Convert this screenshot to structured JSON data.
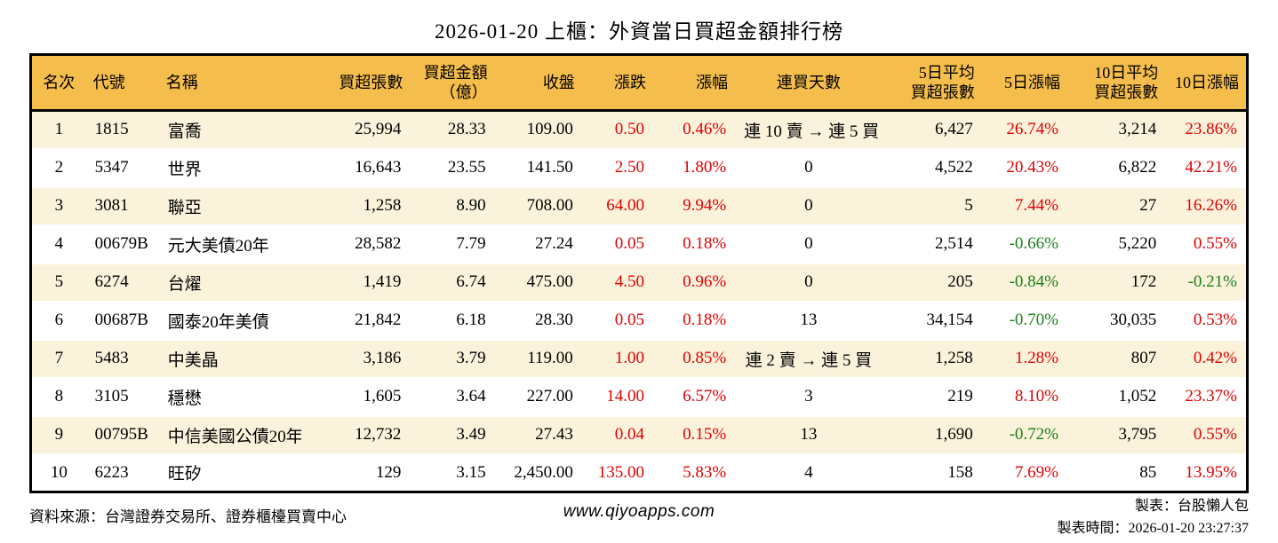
{
  "page": {
    "title": "2026-01-20 上櫃：外資當日買超金額排行榜"
  },
  "colors": {
    "header_bg": "#F5BD4B",
    "row_stripe_bg": "#FBF2DC",
    "up_red": "#E10000",
    "down_green": "#188018",
    "border_black": "#000000"
  },
  "table": {
    "columns": [
      {
        "key": "rank",
        "label": "名次",
        "align": "center"
      },
      {
        "key": "code",
        "label": "代號",
        "align": "left"
      },
      {
        "key": "name",
        "label": "名稱",
        "align": "left"
      },
      {
        "key": "volume",
        "label": "買超張數",
        "align": "right"
      },
      {
        "key": "amount",
        "label": "買超金額\n（億）",
        "align": "right"
      },
      {
        "key": "close",
        "label": "收盤",
        "align": "right"
      },
      {
        "key": "change",
        "label": "漲跌",
        "align": "right"
      },
      {
        "key": "change_pct",
        "label": "漲幅",
        "align": "right"
      },
      {
        "key": "streak",
        "label": "連買天數",
        "align": "center"
      },
      {
        "key": "avg5",
        "label": "5日平均\n買超張數",
        "align": "right"
      },
      {
        "key": "pct5",
        "label": "5日漲幅",
        "align": "right"
      },
      {
        "key": "avg10",
        "label": "10日平均\n買超張數",
        "align": "right"
      },
      {
        "key": "pct10",
        "label": "10日漲幅",
        "align": "right"
      }
    ],
    "rows": [
      {
        "rank": "1",
        "code": "1815",
        "name": "富喬",
        "volume": "25,994",
        "amount": "28.33",
        "close": "109.00",
        "change": {
          "text": "0.50",
          "color": "red"
        },
        "change_pct": {
          "text": "0.46%",
          "color": "red"
        },
        "streak": "連 10 賣 → 連 5 買",
        "avg5": "6,427",
        "pct5": {
          "text": "26.74%",
          "color": "red"
        },
        "avg10": "3,214",
        "pct10": {
          "text": "23.86%",
          "color": "red"
        }
      },
      {
        "rank": "2",
        "code": "5347",
        "name": "世界",
        "volume": "16,643",
        "amount": "23.55",
        "close": "141.50",
        "change": {
          "text": "2.50",
          "color": "red"
        },
        "change_pct": {
          "text": "1.80%",
          "color": "red"
        },
        "streak": "0",
        "avg5": "4,522",
        "pct5": {
          "text": "20.43%",
          "color": "red"
        },
        "avg10": "6,822",
        "pct10": {
          "text": "42.21%",
          "color": "red"
        }
      },
      {
        "rank": "3",
        "code": "3081",
        "name": "聯亞",
        "volume": "1,258",
        "amount": "8.90",
        "close": "708.00",
        "change": {
          "text": "64.00",
          "color": "red"
        },
        "change_pct": {
          "text": "9.94%",
          "color": "red"
        },
        "streak": "0",
        "avg5": "5",
        "pct5": {
          "text": "7.44%",
          "color": "red"
        },
        "avg10": "27",
        "pct10": {
          "text": "16.26%",
          "color": "red"
        }
      },
      {
        "rank": "4",
        "code": "00679B",
        "name": "元大美債20年",
        "volume": "28,582",
        "amount": "7.79",
        "close": "27.24",
        "change": {
          "text": "0.05",
          "color": "red"
        },
        "change_pct": {
          "text": "0.18%",
          "color": "red"
        },
        "streak": "0",
        "avg5": "2,514",
        "pct5": {
          "text": "-0.66%",
          "color": "green"
        },
        "avg10": "5,220",
        "pct10": {
          "text": "0.55%",
          "color": "red"
        }
      },
      {
        "rank": "5",
        "code": "6274",
        "name": "台燿",
        "volume": "1,419",
        "amount": "6.74",
        "close": "475.00",
        "change": {
          "text": "4.50",
          "color": "red"
        },
        "change_pct": {
          "text": "0.96%",
          "color": "red"
        },
        "streak": "0",
        "avg5": "205",
        "pct5": {
          "text": "-0.84%",
          "color": "green"
        },
        "avg10": "172",
        "pct10": {
          "text": "-0.21%",
          "color": "green"
        }
      },
      {
        "rank": "6",
        "code": "00687B",
        "name": "國泰20年美債",
        "volume": "21,842",
        "amount": "6.18",
        "close": "28.30",
        "change": {
          "text": "0.05",
          "color": "red"
        },
        "change_pct": {
          "text": "0.18%",
          "color": "red"
        },
        "streak": "13",
        "avg5": "34,154",
        "pct5": {
          "text": "-0.70%",
          "color": "green"
        },
        "avg10": "30,035",
        "pct10": {
          "text": "0.53%",
          "color": "red"
        }
      },
      {
        "rank": "7",
        "code": "5483",
        "name": "中美晶",
        "volume": "3,186",
        "amount": "3.79",
        "close": "119.00",
        "change": {
          "text": "1.00",
          "color": "red"
        },
        "change_pct": {
          "text": "0.85%",
          "color": "red"
        },
        "streak": "連 2 賣 → 連 5 買",
        "avg5": "1,258",
        "pct5": {
          "text": "1.28%",
          "color": "red"
        },
        "avg10": "807",
        "pct10": {
          "text": "0.42%",
          "color": "red"
        }
      },
      {
        "rank": "8",
        "code": "3105",
        "name": "穩懋",
        "volume": "1,605",
        "amount": "3.64",
        "close": "227.00",
        "change": {
          "text": "14.00",
          "color": "red"
        },
        "change_pct": {
          "text": "6.57%",
          "color": "red"
        },
        "streak": "3",
        "avg5": "219",
        "pct5": {
          "text": "8.10%",
          "color": "red"
        },
        "avg10": "1,052",
        "pct10": {
          "text": "23.37%",
          "color": "red"
        }
      },
      {
        "rank": "9",
        "code": "00795B",
        "name": "中信美國公債20年",
        "volume": "12,732",
        "amount": "3.49",
        "close": "27.43",
        "change": {
          "text": "0.04",
          "color": "red"
        },
        "change_pct": {
          "text": "0.15%",
          "color": "red"
        },
        "streak": "13",
        "avg5": "1,690",
        "pct5": {
          "text": "-0.72%",
          "color": "green"
        },
        "avg10": "3,795",
        "pct10": {
          "text": "0.55%",
          "color": "red"
        }
      },
      {
        "rank": "10",
        "code": "6223",
        "name": "旺矽",
        "volume": "129",
        "amount": "3.15",
        "close": "2,450.00",
        "change": {
          "text": "135.00",
          "color": "red"
        },
        "change_pct": {
          "text": "5.83%",
          "color": "red"
        },
        "streak": "4",
        "avg5": "158",
        "pct5": {
          "text": "7.69%",
          "color": "red"
        },
        "avg10": "85",
        "pct10": {
          "text": "13.95%",
          "color": "red"
        }
      }
    ]
  },
  "footer": {
    "source": "資料來源：台灣證券交易所、證券櫃檯買賣中心",
    "website": "www.qiyoapps.com",
    "author": "製表：台股懶人包",
    "generated_at": "製表時間：2026-01-20 23:27:37"
  }
}
